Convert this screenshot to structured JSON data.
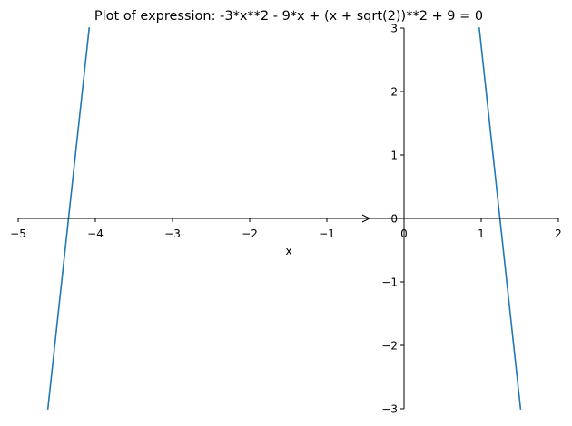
{
  "chart_data": {
    "type": "line",
    "title": "Plot of expression: -3*x**2 - 9*x + (x + sqrt(2))**2 + 9 = 0",
    "xlabel": "x",
    "ylabel": "",
    "xlim": [
      -5,
      2
    ],
    "ylim": [
      -3,
      3
    ],
    "x_ticks": [
      -5,
      -4,
      -3,
      -2,
      -1,
      0,
      1,
      2
    ],
    "y_ticks": [
      -3,
      -2,
      -1,
      0,
      1,
      2,
      3
    ],
    "x_tick_labels": [
      "−5",
      "−4",
      "−3",
      "−2",
      "−1",
      "0",
      "1",
      "2"
    ],
    "y_tick_labels": [
      "−3",
      "−2",
      "−1",
      "0",
      "1",
      "2",
      "3"
    ],
    "grid": false,
    "series": [
      {
        "color": "#1f77b4",
        "segments": [
          {
            "x": [
              -4.615,
              -4.08
            ],
            "y": [
              -3,
              3
            ]
          },
          {
            "x": [
              0.975,
              1.51
            ],
            "y": [
              3,
              -3
            ]
          }
        ]
      }
    ]
  }
}
